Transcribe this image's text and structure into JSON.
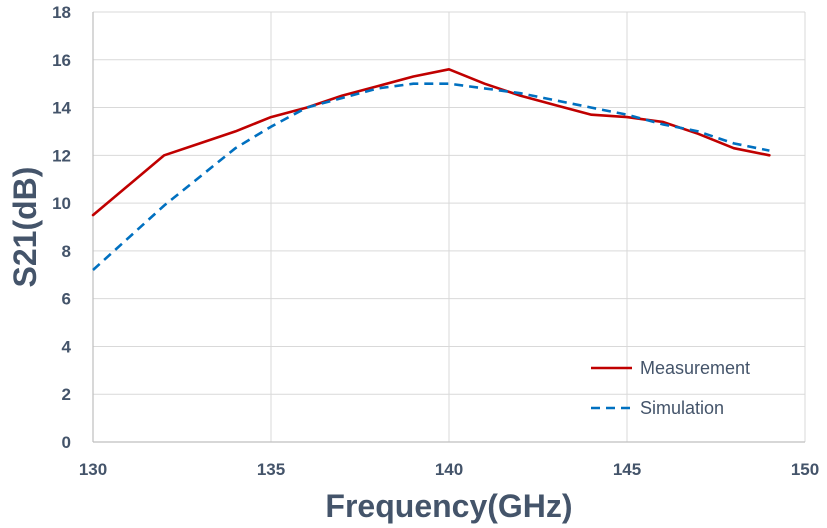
{
  "chart_data": {
    "type": "line",
    "title": "",
    "xlabel": "Frequency(GHz)",
    "ylabel": "S21(dB)",
    "xlim": [
      130,
      150
    ],
    "ylim": [
      0,
      18
    ],
    "xticks": [
      130,
      135,
      140,
      145,
      150
    ],
    "yticks": [
      0,
      2,
      4,
      6,
      8,
      10,
      12,
      14,
      16,
      18
    ],
    "grid": true,
    "legend_position": "bottom-right",
    "series": [
      {
        "name": "Measurement",
        "color": "#c00000",
        "style": "solid",
        "x": [
          130,
          132,
          133,
          134,
          135,
          136,
          137,
          138,
          139,
          140,
          141,
          142,
          143,
          144,
          145,
          146,
          147,
          148,
          149
        ],
        "y": [
          9.5,
          12.0,
          12.5,
          13.0,
          13.6,
          14.0,
          14.5,
          14.9,
          15.3,
          15.6,
          15.0,
          14.5,
          14.1,
          13.7,
          13.6,
          13.4,
          12.9,
          12.3,
          12.0
        ]
      },
      {
        "name": "Simulation",
        "color": "#0070c0",
        "style": "dashed",
        "x": [
          130,
          132,
          134,
          135,
          136,
          137,
          138,
          139,
          140,
          141,
          142,
          143,
          144,
          145,
          146,
          147,
          148,
          149
        ],
        "y": [
          7.2,
          9.9,
          12.3,
          13.2,
          14.0,
          14.4,
          14.8,
          15.0,
          15.0,
          14.8,
          14.6,
          14.3,
          14.0,
          13.7,
          13.3,
          13.0,
          12.5,
          12.2
        ]
      }
    ]
  }
}
